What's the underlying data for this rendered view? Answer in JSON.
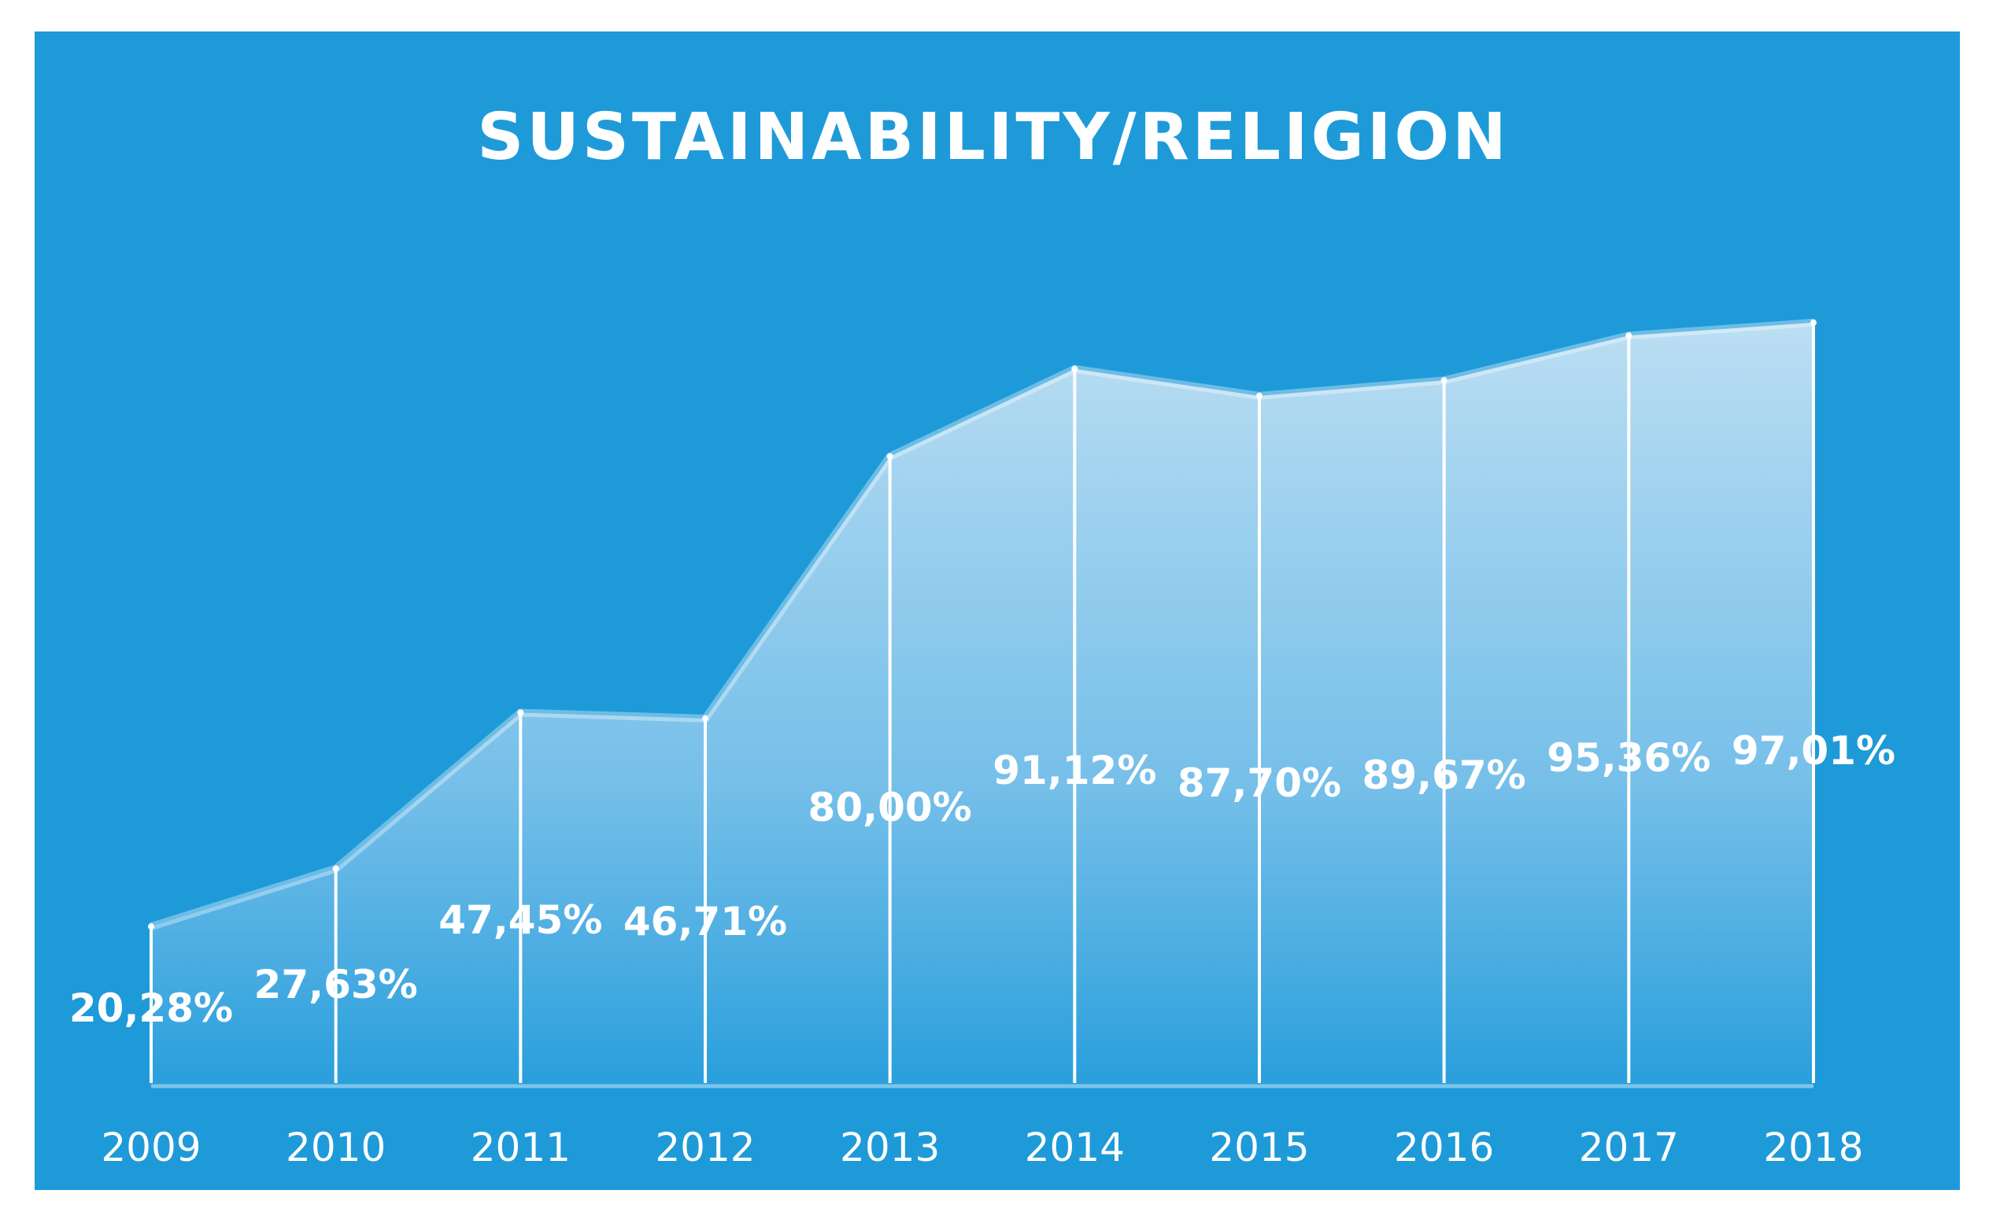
{
  "chart_data": {
    "type": "area",
    "title": "SUSTAINABILITY/RELIGION",
    "xlabel": "",
    "ylabel": "",
    "ylim": [
      0,
      100
    ],
    "grid": false,
    "legend": "none",
    "categories": [
      "2009",
      "2010",
      "2011",
      "2012",
      "2013",
      "2014",
      "2015",
      "2016",
      "2017",
      "2018"
    ],
    "values": [
      20.28,
      27.63,
      47.45,
      46.71,
      80.0,
      91.12,
      87.7,
      89.67,
      95.36,
      97.01
    ],
    "value_labels": [
      "20,28%",
      "27,63%",
      "47,45%",
      "46,71%",
      "80,00%",
      "91,12%",
      "87,70%",
      "89,67%",
      "95,36%",
      "97,01%"
    ],
    "colors": {
      "background": "#1e9ad9",
      "area_top": "#c4e2f4",
      "area_bottom": "#2a9fdc",
      "line": "#ffffff",
      "text": "#ffffff"
    }
  }
}
